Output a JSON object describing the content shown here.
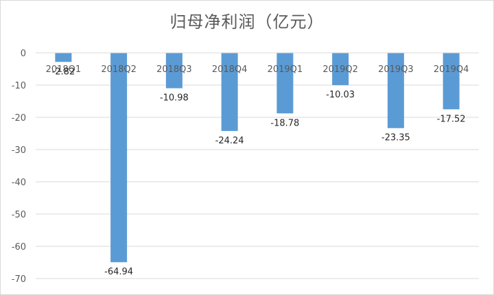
{
  "chart_data": {
    "type": "bar",
    "title": "归母净利润（亿元）",
    "categories": [
      "2018Q1",
      "2018Q2",
      "2018Q3",
      "2018Q4",
      "2019Q1",
      "2019Q2",
      "2019Q3",
      "2019Q4"
    ],
    "values": [
      -2.82,
      -64.94,
      -10.98,
      -24.24,
      -18.78,
      -10.03,
      -23.35,
      -17.52
    ],
    "data_labels": [
      "-2.82",
      "-64.94",
      "-10.98",
      "-24.24",
      "-18.78",
      "-10.03",
      "-23.35",
      "-17.52"
    ],
    "ylim": [
      -70,
      0
    ],
    "yticks": [
      "0",
      "-10",
      "-20",
      "-30",
      "-40",
      "-50",
      "-60",
      "-70"
    ],
    "ytick_values": [
      0,
      -10,
      -20,
      -30,
      -40,
      -50,
      -60,
      -70
    ],
    "grid": true,
    "legend": "none",
    "colors": {
      "bar": "#5b9bd5",
      "grid": "#d9d9d9",
      "text": "#595959"
    }
  }
}
